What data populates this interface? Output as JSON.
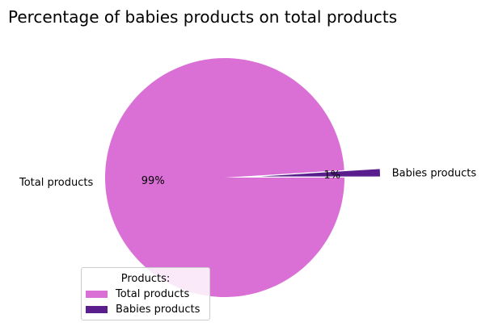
{
  "chart_data": {
    "type": "pie",
    "title": "Percentage of babies products on total products",
    "slices": [
      {
        "label": "Babies products",
        "value": 1,
        "pct_label": "1%",
        "color": "#5a1e8c",
        "exploded": true
      },
      {
        "label": "Total products",
        "value": 99,
        "pct_label": "99%",
        "color": "#da70d6",
        "exploded": false
      }
    ],
    "legend": {
      "title": "Products:",
      "placement": "lower-left",
      "entries": [
        {
          "label": "Total products",
          "color": "#da70d6"
        },
        {
          "label": "Babies products",
          "color": "#5a1e8c"
        }
      ]
    }
  }
}
